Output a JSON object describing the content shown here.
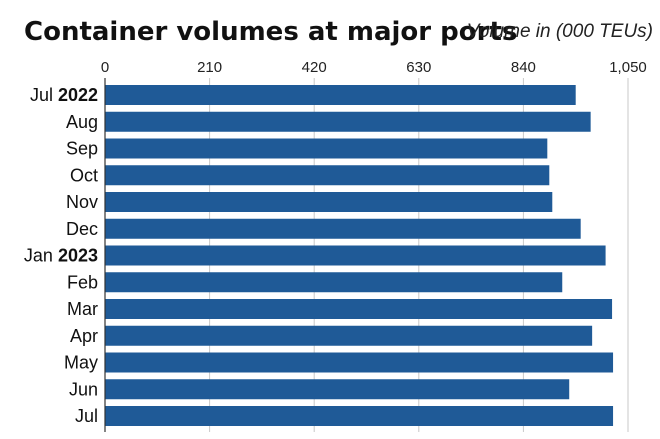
{
  "chart_data": {
    "type": "bar",
    "orientation": "horizontal",
    "title": "Container volumes at major ports",
    "unit_label": "Volume in (000 TEUs)",
    "xlim": [
      0,
      1050
    ],
    "ticks": [
      {
        "value": 0,
        "label": "0"
      },
      {
        "value": 210,
        "label": "210"
      },
      {
        "value": 420,
        "label": "420"
      },
      {
        "value": 630,
        "label": "630"
      },
      {
        "value": 840,
        "label": "840"
      },
      {
        "value": 1050,
        "label": "1,050"
      }
    ],
    "categories": [
      {
        "month": "Jul",
        "year": "2022"
      },
      {
        "month": "Aug",
        "year": ""
      },
      {
        "month": "Sep",
        "year": ""
      },
      {
        "month": "Oct",
        "year": ""
      },
      {
        "month": "Nov",
        "year": ""
      },
      {
        "month": "Dec",
        "year": ""
      },
      {
        "month": "Jan",
        "year": "2023"
      },
      {
        "month": "Feb",
        "year": ""
      },
      {
        "month": "Mar",
        "year": ""
      },
      {
        "month": "Apr",
        "year": ""
      },
      {
        "month": "May",
        "year": ""
      },
      {
        "month": "Jun",
        "year": ""
      },
      {
        "month": "Jul",
        "year": ""
      }
    ],
    "values": [
      945,
      975,
      888,
      892,
      898,
      955,
      1005,
      918,
      1018,
      978,
      1020,
      932,
      1020
    ],
    "bar_color": "#1f5a97",
    "grid": true
  }
}
